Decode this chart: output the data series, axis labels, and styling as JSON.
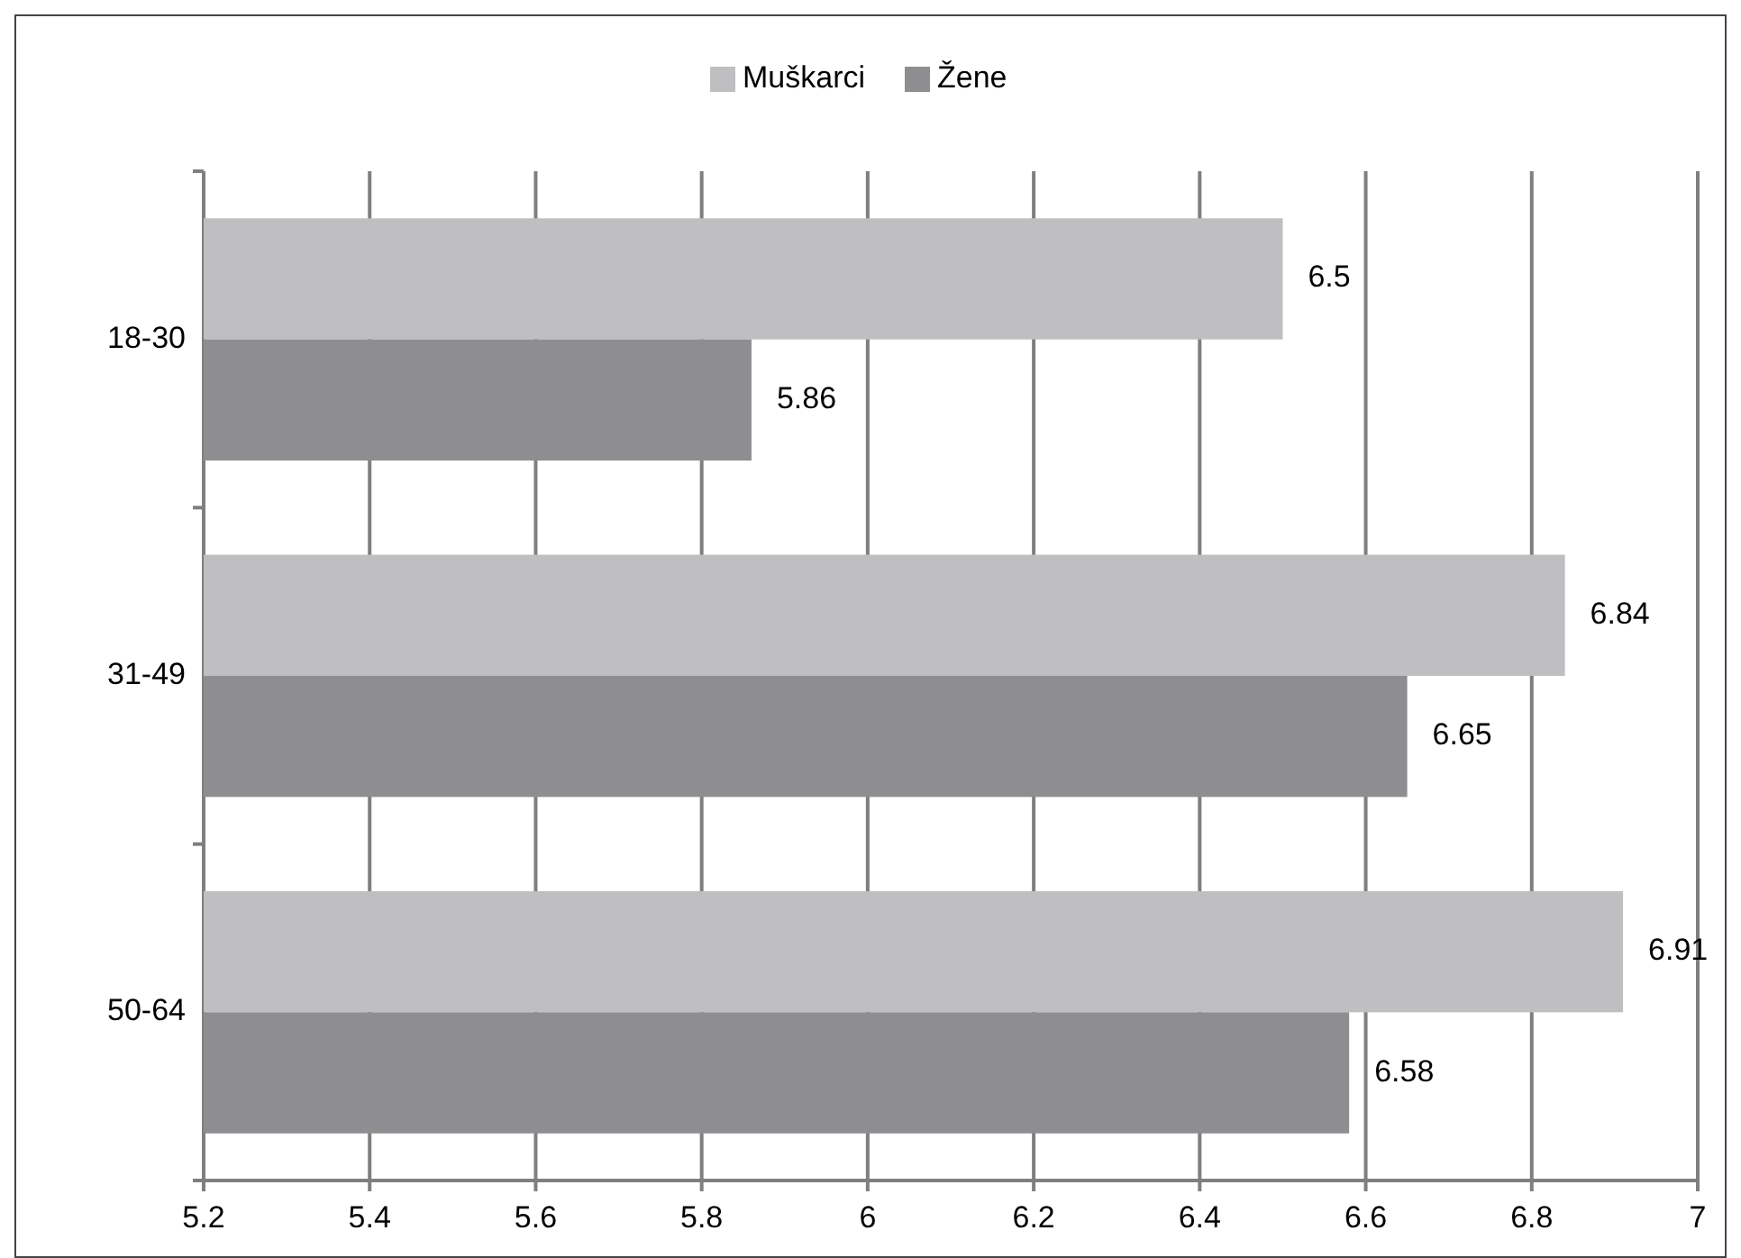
{
  "chart_data": {
    "type": "bar",
    "orientation": "horizontal",
    "categories": [
      "18-30",
      "31-49",
      "50-64"
    ],
    "series": [
      {
        "name": "Muškarci",
        "color": "#bfbfc1",
        "values": [
          6.5,
          6.84,
          6.91
        ]
      },
      {
        "name": "Žene",
        "color": "#8e8e91",
        "values": [
          5.86,
          6.65,
          6.58
        ]
      }
    ],
    "xlim": [
      5.2,
      7
    ],
    "xticks": [
      5.2,
      5.4,
      5.6,
      5.8,
      6,
      6.2,
      6.4,
      6.6,
      6.8,
      7
    ],
    "grid": "x",
    "legend": "top",
    "data_labels": true
  }
}
